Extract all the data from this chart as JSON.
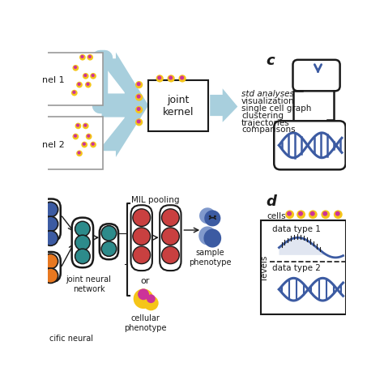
{
  "background_color": "#ffffff",
  "panel_c_label": "c",
  "panel_d_label": "d",
  "text_analyses": "std analyses",
  "text_list": [
    "visualization",
    "single cell graph",
    "clustering",
    "trajectories",
    "comparisons"
  ],
  "joint_kernel_text": "joint\nkernel",
  "panel1_label": "nel 1",
  "panel2_label": "nel 2",
  "mil_pooling_text": "MIL pooling",
  "joint_neural_text": "joint neural\nnetwork",
  "specific_neural_text": "cific neural",
  "sample_phenotype_text": "sample\nphenotype",
  "cellular_phenotype_text": "cellular\nphenotype",
  "or_text": "or",
  "cells_text": "cells",
  "levels_text": "levels",
  "data_type1_text": "data type 1",
  "data_type2_text": "data type 2",
  "color_yellow": "#F5C518",
  "color_magenta": "#CC3399",
  "color_blue": "#3C5BA2",
  "color_blue_light": "#8099CC",
  "color_teal": "#2D8B8B",
  "color_orange": "#E87820",
  "color_red": "#C94040",
  "color_light_blue_arrow": "#A8CFDD",
  "color_dark": "#1a1a1a",
  "color_gray": "#888888"
}
